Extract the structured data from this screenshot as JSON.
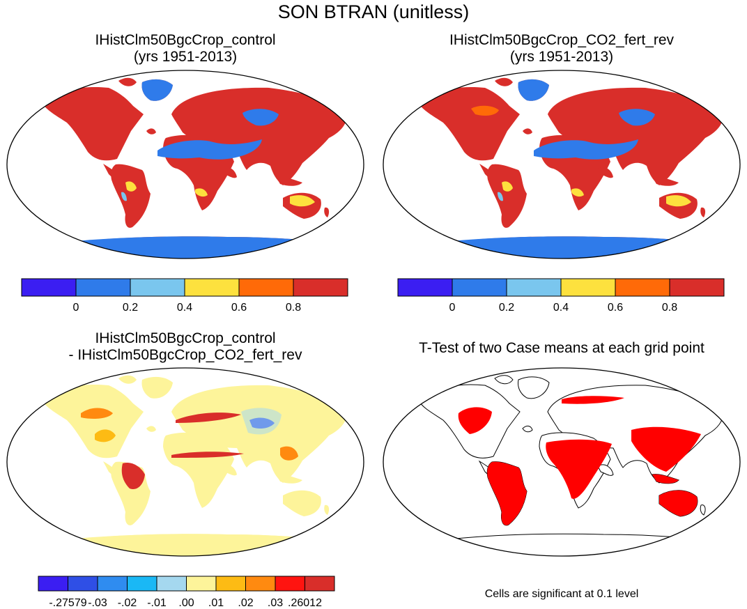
{
  "title": "SON BTRAN (unitless)",
  "panels": [
    {
      "title_line1": "IHistClm50BgcCrop_control",
      "title_line2": "(yrs 1951-2013)",
      "field": "case mean BTRAN"
    },
    {
      "title_line1": "IHistClm50BgcCrop_CO2_fert_rev",
      "title_line2": "(yrs 1951-2013)",
      "field": "case mean BTRAN"
    },
    {
      "title_line1": "IHistClm50BgcCrop_control",
      "title_line2": "- IHistClm50BgcCrop_CO2_fert_rev",
      "field": "difference"
    },
    {
      "title_line1": "T-Test of two Case means at each grid point",
      "title_line2": "",
      "field": "significance"
    }
  ],
  "colorbar_mean": {
    "colors": [
      "#3b1ef2",
      "#2f7bea",
      "#7ac6ee",
      "#fde13e",
      "#ff6a08",
      "#d92e2a"
    ],
    "labels": [
      "0",
      "0.2",
      "0.4",
      "0.6",
      "0.8"
    ]
  },
  "colorbar_diff": {
    "colors": [
      "#3b1ef2",
      "#2f4fe6",
      "#2f8cf0",
      "#1ab8f5",
      "#a5d8ef",
      "#fdf49a",
      "#fdbb14",
      "#ff8a10",
      "#ff1410",
      "#d92e2a"
    ],
    "labels": [
      "-.27579",
      "-.03",
      "-.02",
      "-.01",
      ".00",
      ".01",
      ".02",
      ".03",
      ".26012"
    ]
  },
  "significance_note": "Cells are significant at 0.1 level",
  "significance_color": "#ff0000"
}
